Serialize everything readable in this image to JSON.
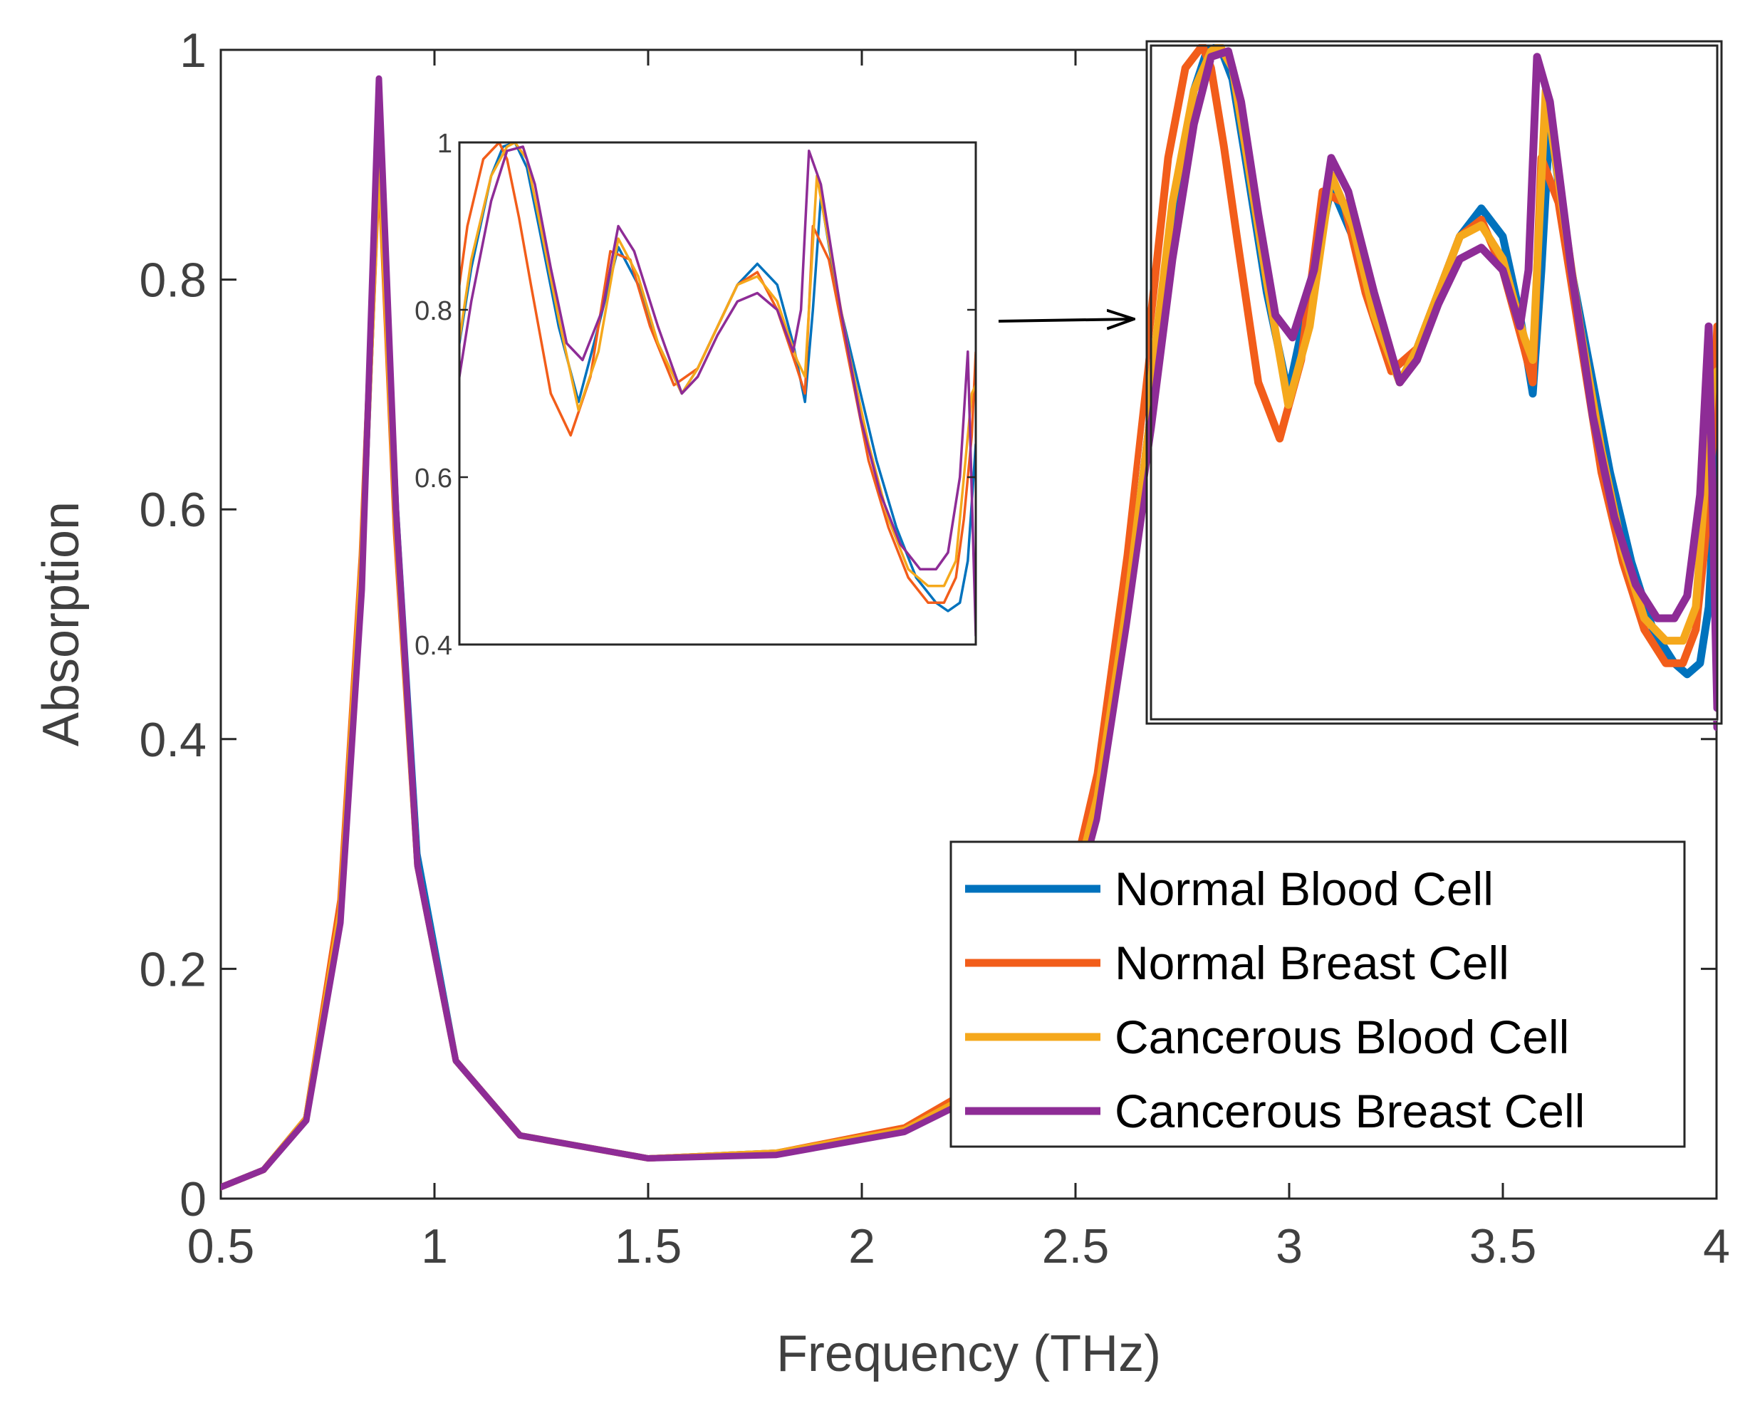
{
  "chart_data": {
    "type": "line",
    "title": "",
    "xlabel": "Frequency (THz)",
    "ylabel": "Absorption",
    "xlim": [
      0.5,
      4
    ],
    "ylim": [
      0,
      1
    ],
    "xticks": [
      "0.5",
      "1",
      "1.5",
      "2",
      "2.5",
      "3",
      "3.5",
      "4"
    ],
    "yticks": [
      "0",
      "0.2",
      "0.4",
      "0.6",
      "0.8",
      "1"
    ],
    "legend_position": "bottom-right",
    "colors": {
      "normal_blood": "#0072BD",
      "normal_breast": "#F25D1A",
      "cancerous_blood": "#F5A81C",
      "cancerous_breast": "#8E2C96"
    },
    "series": [
      {
        "name": "Normal Blood Cell",
        "color_key": "normal_blood",
        "x": [
          0.5,
          0.6,
          0.7,
          0.78,
          0.83,
          0.87,
          0.91,
          0.96,
          1.05,
          1.2,
          1.5,
          1.8,
          2.1,
          2.3,
          2.45,
          2.55,
          2.62,
          2.68,
          2.73,
          2.78,
          2.81,
          2.84,
          2.87,
          2.9,
          2.95,
          3.0,
          3.05,
          3.1,
          3.15,
          3.2,
          3.26,
          3.3,
          3.35,
          3.4,
          3.45,
          3.5,
          3.54,
          3.57,
          3.59,
          3.61,
          3.65,
          3.7,
          3.75,
          3.8,
          3.85,
          3.9,
          3.93,
          3.96,
          3.98,
          4.0
        ],
        "y": [
          0.01,
          0.025,
          0.07,
          0.25,
          0.55,
          0.93,
          0.6,
          0.3,
          0.12,
          0.055,
          0.035,
          0.04,
          0.06,
          0.1,
          0.2,
          0.35,
          0.52,
          0.7,
          0.85,
          0.96,
          0.995,
          1.0,
          0.97,
          0.9,
          0.78,
          0.69,
          0.78,
          0.875,
          0.83,
          0.76,
          0.7,
          0.73,
          0.78,
          0.83,
          0.855,
          0.83,
          0.76,
          0.69,
          0.8,
          0.935,
          0.82,
          0.72,
          0.62,
          0.54,
          0.48,
          0.45,
          0.44,
          0.45,
          0.5,
          0.64
        ]
      },
      {
        "name": "Normal Breast Cell",
        "color_key": "normal_breast",
        "x": [
          0.5,
          0.6,
          0.7,
          0.78,
          0.83,
          0.87,
          0.91,
          0.96,
          1.05,
          1.2,
          1.5,
          1.8,
          2.1,
          2.3,
          2.45,
          2.55,
          2.62,
          2.68,
          2.72,
          2.76,
          2.8,
          2.82,
          2.85,
          2.88,
          2.93,
          2.98,
          3.03,
          3.08,
          3.13,
          3.18,
          3.24,
          3.3,
          3.35,
          3.4,
          3.45,
          3.5,
          3.55,
          3.57,
          3.59,
          3.63,
          3.68,
          3.73,
          3.78,
          3.83,
          3.88,
          3.92,
          3.95,
          3.97,
          3.99,
          4.0
        ],
        "y": [
          0.01,
          0.025,
          0.07,
          0.26,
          0.56,
          0.92,
          0.58,
          0.29,
          0.12,
          0.055,
          0.035,
          0.04,
          0.062,
          0.105,
          0.21,
          0.37,
          0.56,
          0.76,
          0.9,
          0.98,
          1.0,
          0.98,
          0.91,
          0.83,
          0.7,
          0.65,
          0.72,
          0.87,
          0.86,
          0.78,
          0.71,
          0.73,
          0.78,
          0.83,
          0.845,
          0.8,
          0.73,
          0.7,
          0.9,
          0.86,
          0.74,
          0.62,
          0.54,
          0.48,
          0.45,
          0.45,
          0.48,
          0.55,
          0.65,
          0.75
        ]
      },
      {
        "name": "Cancerous Blood Cell",
        "color_key": "cancerous_blood",
        "x": [
          0.5,
          0.6,
          0.7,
          0.78,
          0.83,
          0.87,
          0.91,
          0.96,
          1.05,
          1.2,
          1.5,
          1.8,
          2.1,
          2.3,
          2.45,
          2.55,
          2.62,
          2.68,
          2.73,
          2.78,
          2.82,
          2.84,
          2.87,
          2.9,
          2.95,
          3.0,
          3.05,
          3.1,
          3.15,
          3.2,
          3.26,
          3.3,
          3.35,
          3.4,
          3.45,
          3.5,
          3.55,
          3.57,
          3.6,
          3.63,
          3.68,
          3.73,
          3.78,
          3.83,
          3.88,
          3.92,
          3.95,
          3.97,
          3.99,
          4.0
        ],
        "y": [
          0.01,
          0.025,
          0.07,
          0.25,
          0.55,
          0.93,
          0.59,
          0.29,
          0.12,
          0.055,
          0.035,
          0.04,
          0.06,
          0.1,
          0.2,
          0.35,
          0.52,
          0.7,
          0.86,
          0.96,
          0.995,
          1.0,
          0.98,
          0.91,
          0.79,
          0.68,
          0.75,
          0.885,
          0.84,
          0.76,
          0.7,
          0.73,
          0.78,
          0.83,
          0.84,
          0.81,
          0.74,
          0.72,
          0.96,
          0.88,
          0.75,
          0.64,
          0.55,
          0.49,
          0.47,
          0.47,
          0.5,
          0.6,
          0.7,
          0.71
        ]
      },
      {
        "name": "Cancerous Breast Cell",
        "color_key": "cancerous_breast",
        "x": [
          0.5,
          0.6,
          0.7,
          0.78,
          0.83,
          0.87,
          0.91,
          0.96,
          1.05,
          1.2,
          1.5,
          1.8,
          2.1,
          2.3,
          2.45,
          2.55,
          2.62,
          2.68,
          2.73,
          2.78,
          2.82,
          2.86,
          2.89,
          2.93,
          2.97,
          3.01,
          3.06,
          3.1,
          3.14,
          3.2,
          3.26,
          3.3,
          3.35,
          3.4,
          3.45,
          3.5,
          3.54,
          3.56,
          3.58,
          3.61,
          3.66,
          3.71,
          3.76,
          3.81,
          3.86,
          3.9,
          3.93,
          3.96,
          3.98,
          4.0
        ],
        "y": [
          0.01,
          0.025,
          0.068,
          0.24,
          0.53,
          0.975,
          0.6,
          0.29,
          0.12,
          0.055,
          0.035,
          0.038,
          0.058,
          0.095,
          0.19,
          0.33,
          0.5,
          0.66,
          0.81,
          0.93,
          0.99,
          0.995,
          0.95,
          0.85,
          0.76,
          0.74,
          0.8,
          0.9,
          0.87,
          0.78,
          0.7,
          0.72,
          0.77,
          0.81,
          0.82,
          0.8,
          0.75,
          0.8,
          0.99,
          0.95,
          0.8,
          0.67,
          0.58,
          0.52,
          0.49,
          0.49,
          0.51,
          0.6,
          0.75,
          0.41
        ]
      }
    ],
    "inset": {
      "xlim": [
        2.7,
        4.0
      ],
      "ylim": [
        0.4,
        1.0
      ],
      "yticks": [
        "0.4",
        "0.6",
        "0.8",
        "1"
      ],
      "note": "zoom of the region x 2.7–4.0, y 0.4–1.0"
    }
  }
}
